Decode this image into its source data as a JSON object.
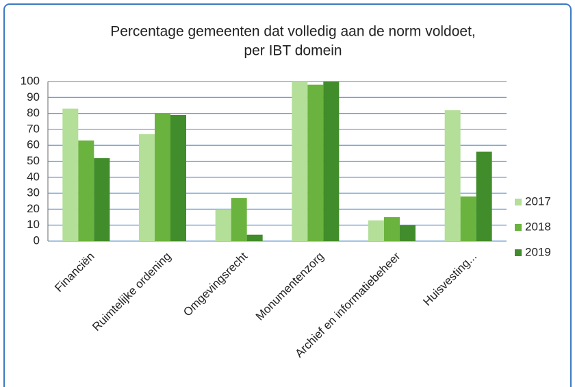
{
  "chart_data": {
    "type": "bar",
    "title": [
      "Percentage gemeenten dat volledig aan de norm voldoet,",
      "per IBT domein"
    ],
    "categories": [
      "Financiën",
      "Ruimtelijke ordening",
      "Omgevingsrecht",
      "Monumentenzorg",
      "Archief en informatiebeheer",
      "Huisvesting..."
    ],
    "series": [
      {
        "name": "2017",
        "color": "#b3df98",
        "values": [
          83,
          67,
          20,
          100,
          13,
          82
        ]
      },
      {
        "name": "2018",
        "color": "#6bb33f",
        "values": [
          63,
          80,
          27,
          98,
          15,
          28
        ]
      },
      {
        "name": "2019",
        "color": "#418c2b",
        "values": [
          52,
          79,
          4,
          100,
          10,
          56
        ]
      }
    ],
    "ylim": [
      0,
      100
    ],
    "yticks": [
      0,
      10,
      20,
      30,
      40,
      50,
      60,
      70,
      80,
      90,
      100
    ],
    "grid": true,
    "legend": "right"
  }
}
